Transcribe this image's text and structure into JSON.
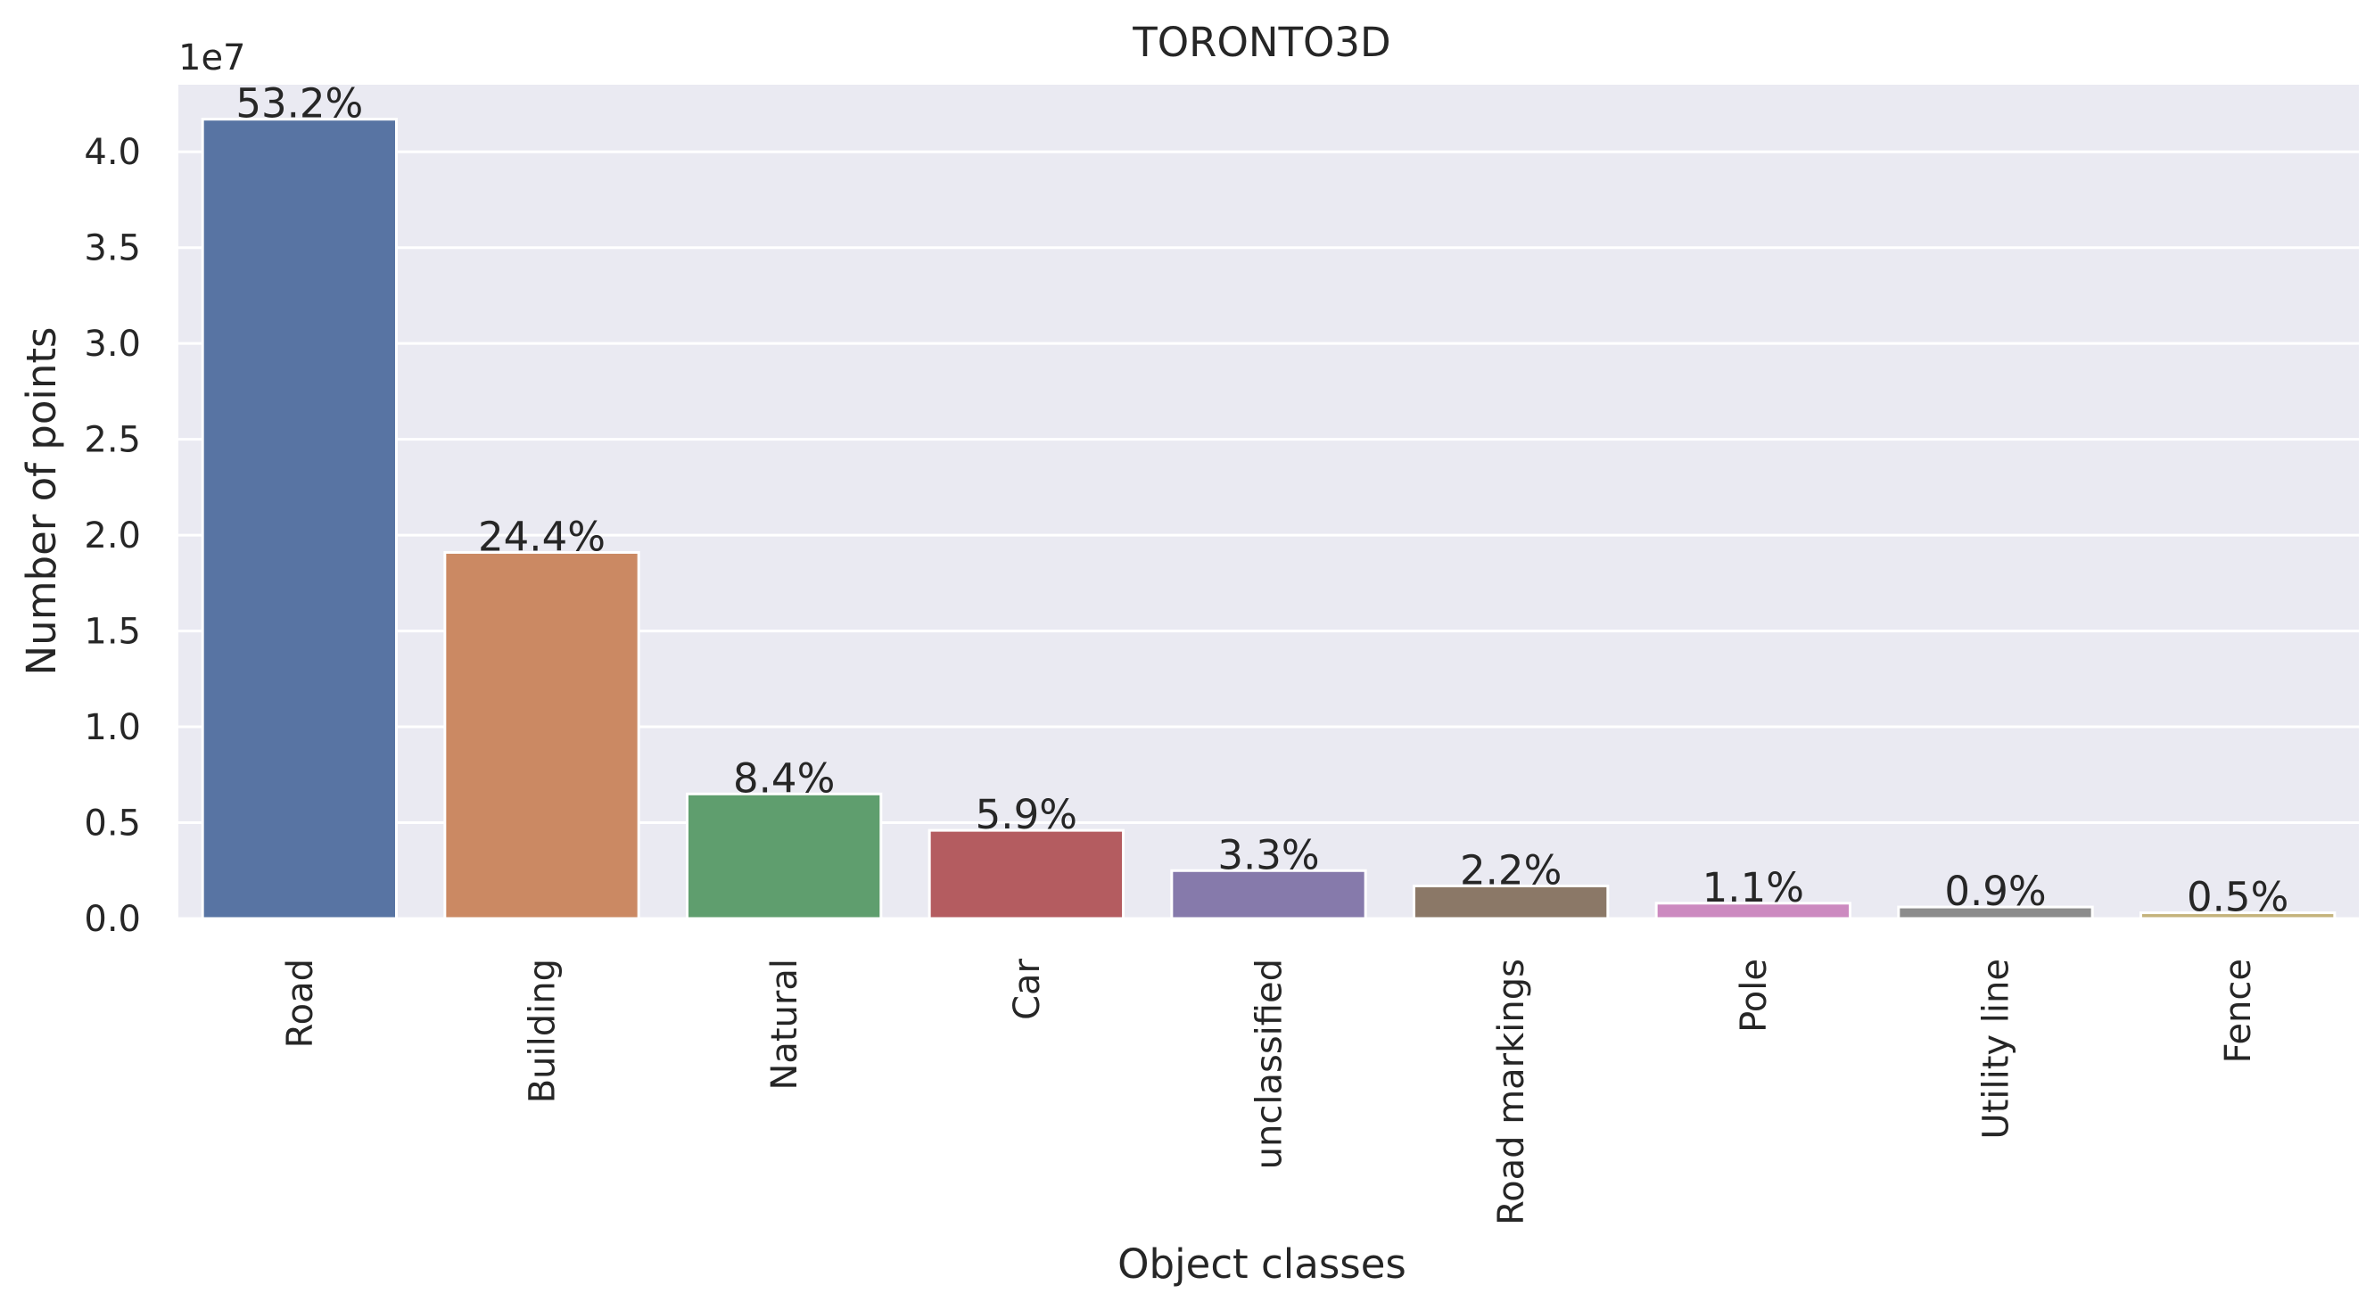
{
  "chart_data": {
    "type": "bar",
    "title": "TORONTO3D",
    "xlabel": "Object classes",
    "ylabel": "Number of points",
    "y_offset_label": "1e7",
    "ylim": [
      0,
      4.35
    ],
    "y_ticks": [
      "0.0",
      "0.5",
      "1.0",
      "1.5",
      "2.0",
      "2.5",
      "3.0",
      "3.5",
      "4.0"
    ],
    "grid": true,
    "categories": [
      "Road",
      "Building",
      "Natural",
      "Car",
      "unclassified",
      "Road markings",
      "Pole",
      "Utility line",
      "Fence"
    ],
    "values": [
      4.17,
      1.91,
      0.65,
      0.46,
      0.25,
      0.17,
      0.08,
      0.06,
      0.03
    ],
    "data_labels": [
      "53.2%",
      "24.4%",
      "8.4%",
      "5.9%",
      "3.3%",
      "2.2%",
      "1.1%",
      "0.9%",
      "0.5%"
    ],
    "colors": [
      "#5874a3",
      "#cb8963",
      "#5f9e6e",
      "#b45c60",
      "#867aab",
      "#8b7867",
      "#cc8ac0",
      "#8c8c8c",
      "#c4b37c"
    ],
    "background": "#eaeaf2"
  }
}
